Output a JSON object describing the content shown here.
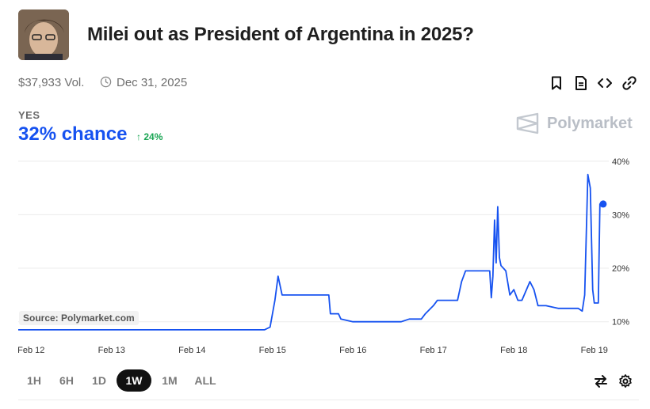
{
  "header": {
    "title": "Milei out as President of Argentina in 2025?",
    "volume": "$37,933 Vol.",
    "end_date": "Dec 31, 2025"
  },
  "outcome": {
    "label": "YES",
    "chance": "32% chance",
    "delta": "24%",
    "delta_direction": "up"
  },
  "brand": {
    "name": "Polymarket"
  },
  "source": "Source: Polymarket.com",
  "colors": {
    "line": "#1652f0",
    "up": "#19a553",
    "grid": "#ececec"
  },
  "icons": [
    "bookmark-icon",
    "document-icon",
    "embed-icon",
    "link-icon",
    "swap-icon",
    "gear-icon"
  ],
  "range_buttons": [
    {
      "label": "1H",
      "active": false
    },
    {
      "label": "6H",
      "active": false
    },
    {
      "label": "1D",
      "active": false
    },
    {
      "label": "1W",
      "active": true
    },
    {
      "label": "1M",
      "active": false
    },
    {
      "label": "ALL",
      "active": false
    }
  ],
  "chart_data": {
    "type": "line",
    "y_axis": {
      "ticks": [
        "10%",
        "20%",
        "30%",
        "40%"
      ],
      "tick_values": [
        10,
        20,
        30,
        40
      ],
      "position": "right",
      "grid": true
    },
    "x_axis": {
      "tick_labels": [
        "Feb 12",
        "Feb 13",
        "Feb 14",
        "Feb 15",
        "Feb 16",
        "Feb 17",
        "Feb 18",
        "Feb 19"
      ],
      "tick_values": [
        0,
        1,
        2,
        3,
        4,
        5,
        6,
        7
      ]
    },
    "xlim": [
      -0.16,
      7.18
    ],
    "ylim": [
      7,
      41
    ],
    "series": [
      {
        "points": [
          [
            -0.16,
            8.5
          ],
          [
            0.5,
            8.5
          ],
          [
            1,
            8.5
          ],
          [
            1.5,
            8.5
          ],
          [
            2,
            8.5
          ],
          [
            2.5,
            8.5
          ],
          [
            2.9,
            8.5
          ],
          [
            2.97,
            9
          ],
          [
            3.03,
            14
          ],
          [
            3.07,
            18.5
          ],
          [
            3.12,
            15
          ],
          [
            3.6,
            15
          ],
          [
            3.7,
            15
          ],
          [
            3.72,
            11.5
          ],
          [
            3.82,
            11.5
          ],
          [
            3.85,
            10.5
          ],
          [
            4.0,
            10
          ],
          [
            4.3,
            10
          ],
          [
            4.5,
            10
          ],
          [
            4.6,
            10
          ],
          [
            4.7,
            10.5
          ],
          [
            4.85,
            10.5
          ],
          [
            4.9,
            11.5
          ],
          [
            5.0,
            13
          ],
          [
            5.05,
            14
          ],
          [
            5.3,
            14
          ],
          [
            5.35,
            17.5
          ],
          [
            5.4,
            19.5
          ],
          [
            5.7,
            19.5
          ],
          [
            5.72,
            14.5
          ],
          [
            5.74,
            18.5
          ],
          [
            5.76,
            29
          ],
          [
            5.78,
            21
          ],
          [
            5.8,
            31.5
          ],
          [
            5.82,
            22
          ],
          [
            5.84,
            20.5
          ],
          [
            5.9,
            19.5
          ],
          [
            5.95,
            15
          ],
          [
            6.0,
            16
          ],
          [
            6.05,
            14
          ],
          [
            6.1,
            14
          ],
          [
            6.2,
            17.5
          ],
          [
            6.25,
            16
          ],
          [
            6.3,
            13
          ],
          [
            6.4,
            13
          ],
          [
            6.55,
            12.5
          ],
          [
            6.8,
            12.5
          ],
          [
            6.85,
            12
          ],
          [
            6.88,
            15
          ],
          [
            6.92,
            37.5
          ],
          [
            6.95,
            35
          ],
          [
            6.98,
            16
          ],
          [
            7.0,
            13.5
          ],
          [
            7.05,
            13.5
          ],
          [
            7.07,
            32
          ],
          [
            7.11,
            32
          ]
        ]
      }
    ],
    "current_value": 32
  }
}
